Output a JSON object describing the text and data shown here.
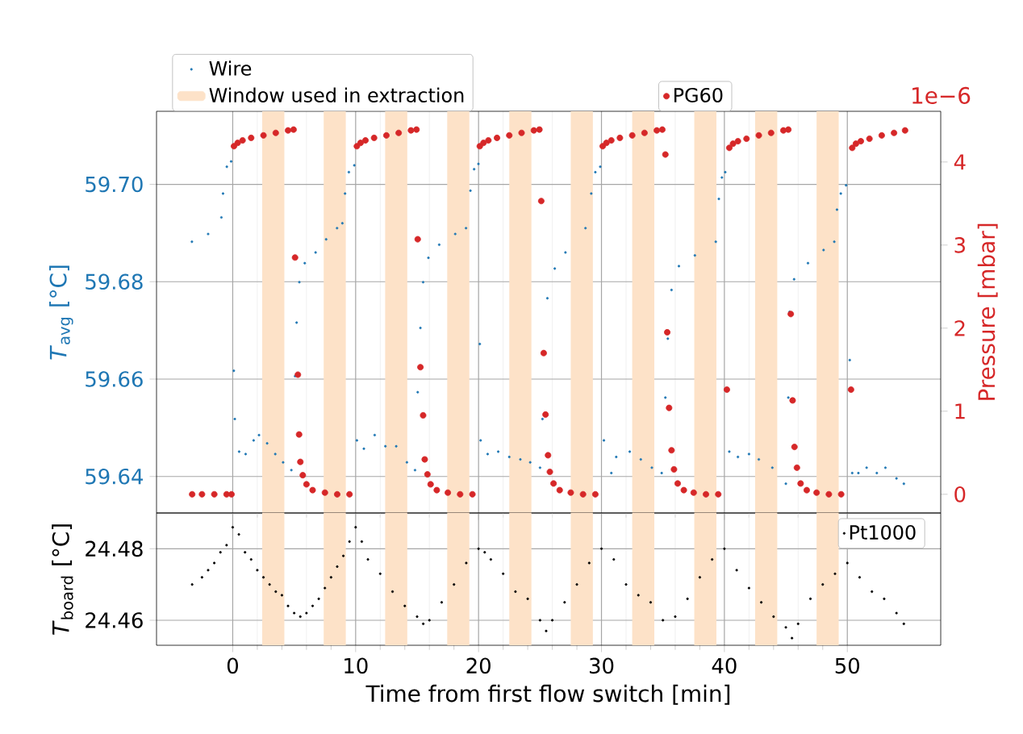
{
  "chart_data": [
    {
      "type": "scatter",
      "ylabel": "*T*$_{avg}$ [°C]",
      "y2label": "Pressure [mbar]",
      "annotations": [
        "1e−6"
      ],
      "xlim": [
        -6.2,
        57.6
      ],
      "xticks": [
        0,
        10,
        20,
        30,
        40,
        50
      ],
      "ylim": [
        59.6325,
        59.715
      ],
      "yticks": [
        {
          "value": 59.64,
          "label": "59.64"
        },
        {
          "value": 59.66,
          "label": "59.66"
        },
        {
          "value": 59.68,
          "label": "59.68"
        },
        {
          "value": 59.7,
          "label": "59.70"
        }
      ],
      "y2lim": [
        -0.225,
        4.61
      ],
      "y2ticks": [
        0,
        1,
        2,
        3,
        4
      ],
      "grid": true,
      "legend": "top",
      "tick_labels": "y",
      "marker": "circle",
      "bands": [
        {
          "axis": "x",
          "from": 2.4,
          "to": 4.2,
          "color": "#fde2c8",
          "label": "Window used in extraction"
        },
        {
          "axis": "x",
          "from": 7.4,
          "to": 9.2,
          "color": "#fde2c8"
        },
        {
          "axis": "x",
          "from": 12.4,
          "to": 14.2,
          "color": "#fde2c8"
        },
        {
          "axis": "x",
          "from": 17.45,
          "to": 19.25,
          "color": "#fde2c8"
        },
        {
          "axis": "x",
          "from": 22.5,
          "to": 24.3,
          "color": "#fde2c8"
        },
        {
          "axis": "x",
          "from": 27.5,
          "to": 29.3,
          "color": "#fde2c8"
        },
        {
          "axis": "x",
          "from": 32.5,
          "to": 34.3,
          "color": "#fde2c8"
        },
        {
          "axis": "x",
          "from": 37.55,
          "to": 39.35,
          "color": "#fde2c8"
        },
        {
          "axis": "x",
          "from": 42.5,
          "to": 44.3,
          "color": "#fde2c8"
        },
        {
          "axis": "x",
          "from": 47.5,
          "to": 49.3,
          "color": "#fde2c8"
        }
      ],
      "series": [
        {
          "name": "Wire",
          "color": "#1f77b4",
          "x": [
            -3.32,
            -2.0,
            -0.92,
            -0.79,
            -0.48,
            -0.13,
            0.09,
            0.17,
            0.52,
            1.05,
            1.7,
            2.14,
            2.8,
            3.46,
            4.1,
            4.77,
            5.07,
            5.2,
            5.42,
            5.86,
            6.74,
            7.6,
            8.49,
            8.92,
            9.14,
            9.45,
            9.89,
            10.1,
            10.67,
            11.55,
            12.42,
            13.3,
            14.17,
            14.83,
            15.05,
            15.27,
            15.49,
            15.92,
            16.8,
            18.1,
            18.98,
            19.34,
            19.64,
            19.99,
            20.1,
            20.17,
            20.74,
            21.6,
            22.5,
            23.4,
            24.2,
            25.0,
            25.2,
            25.4,
            25.6,
            26.2,
            27.07,
            28.7,
            29.17,
            29.5,
            29.9,
            30.2,
            30.8,
            31.2,
            32.3,
            33.2,
            34.1,
            34.9,
            35.2,
            35.4,
            35.7,
            36.3,
            37.6,
            39.3,
            39.55,
            39.8,
            40.07,
            40.4,
            41.1,
            42.0,
            42.8,
            43.9,
            45.0,
            45.2,
            45.3,
            45.67,
            46.8,
            48.07,
            48.94,
            49.16,
            49.47,
            49.9,
            50.2,
            50.4,
            50.9,
            51.57,
            52.4,
            53.1,
            54.0,
            54.6
          ],
          "values": [
            59.6882,
            59.6898,
            59.6932,
            59.6981,
            59.7036,
            59.7047,
            59.6617,
            59.6518,
            59.6451,
            59.6446,
            59.6474,
            59.6485,
            59.6468,
            59.6446,
            59.6429,
            59.6413,
            59.6606,
            59.6716,
            59.6799,
            59.6838,
            59.686,
            59.6887,
            59.691,
            59.692,
            59.6981,
            59.7025,
            59.7039,
            59.6474,
            59.6457,
            59.6485,
            59.6462,
            59.6462,
            59.6429,
            59.6413,
            59.6573,
            59.6705,
            59.6799,
            59.6849,
            59.6876,
            59.6898,
            59.691,
            59.6987,
            59.7031,
            59.7042,
            59.6672,
            59.6474,
            59.6446,
            59.6451,
            59.644,
            59.6435,
            59.6429,
            59.6418,
            59.6518,
            null,
            59.6766,
            59.6827,
            59.686,
            59.691,
            59.6981,
            59.7025,
            59.7036,
            59.6474,
            59.6407,
            59.644,
            59.6451,
            59.6435,
            59.6418,
            59.6407,
            59.6562,
            59.6683,
            59.6783,
            59.6832,
            59.6854,
            59.6882,
            59.697,
            59.7014,
            59.7025,
            59.6451,
            59.644,
            59.6446,
            59.6435,
            59.6418,
            59.6385,
            59.6562,
            59.6738,
            59.6805,
            59.6838,
            59.6865,
            59.6882,
            59.6948,
            59.6981,
            59.6998,
            59.6639,
            59.6407,
            59.6407,
            59.6418,
            59.6407,
            59.6418,
            59.6396,
            59.6385
          ]
        },
        {
          "name": "PG60",
          "color": "#d62728",
          "axis": "y2",
          "x": [
            -3.3,
            -2.5,
            -1.5,
            -0.5,
            -0.1,
            0.1,
            0.4,
            0.8,
            1.5,
            2.5,
            3.5,
            4.5,
            4.95,
            5.07,
            5.3,
            5.4,
            5.5,
            5.7,
            6.0,
            6.5,
            7.5,
            8.5,
            9.5,
            10.1,
            10.4,
            10.8,
            11.5,
            12.5,
            13.5,
            14.5,
            14.95,
            15.05,
            15.27,
            15.49,
            15.62,
            15.84,
            16.1,
            16.6,
            17.5,
            18.5,
            19.5,
            20.1,
            20.4,
            20.8,
            21.5,
            22.5,
            23.5,
            24.5,
            24.95,
            25.1,
            25.3,
            25.45,
            25.65,
            25.8,
            26.1,
            26.6,
            27.5,
            28.5,
            29.5,
            30.1,
            30.4,
            30.8,
            31.5,
            32.5,
            33.5,
            34.5,
            34.95,
            35.2,
            35.35,
            35.5,
            35.7,
            35.9,
            36.2,
            36.7,
            37.5,
            38.5,
            39.5,
            40.2,
            40.4,
            40.7,
            41.1,
            41.8,
            42.8,
            43.8,
            44.8,
            45.2,
            45.4,
            45.55,
            45.7,
            45.9,
            46.2,
            46.7,
            47.5,
            48.5,
            49.5,
            50.3,
            50.4,
            50.7,
            51.1,
            51.8,
            52.8,
            53.8,
            54.7
          ],
          "values": [
            0,
            0,
            0,
            0,
            0,
            4.19,
            4.23,
            4.26,
            4.29,
            4.32,
            4.35,
            4.38,
            4.39,
            2.85,
            1.44,
            0.72,
            0.39,
            0.23,
            0.12,
            0.05,
            0.02,
            0,
            0,
            4.19,
            4.23,
            4.26,
            4.29,
            4.32,
            4.35,
            4.38,
            4.39,
            3.07,
            1.53,
            0.95,
            0.42,
            0.24,
            0.12,
            0.05,
            0.02,
            0,
            0,
            4.19,
            4.23,
            4.26,
            4.29,
            4.32,
            4.35,
            4.38,
            4.39,
            3.53,
            1.7,
            0.96,
            0.47,
            0.27,
            0.13,
            0.05,
            0.02,
            0,
            0,
            4.19,
            4.23,
            4.26,
            4.29,
            4.32,
            4.35,
            4.38,
            4.39,
            4.09,
            1.95,
            1.04,
            0.53,
            0.3,
            0.13,
            0.05,
            0.02,
            0,
            0,
            1.26,
            4.17,
            4.22,
            4.25,
            4.28,
            4.32,
            4.35,
            4.38,
            4.39,
            2.17,
            1.13,
            0.57,
            0.32,
            0.13,
            0.05,
            0.02,
            0,
            0,
            1.26,
            4.17,
            4.22,
            4.25,
            4.28,
            4.32,
            4.35,
            4.38
          ]
        }
      ]
    },
    {
      "type": "scatter",
      "xlabel": "Time from first flow switch [min]",
      "ylabel": "*T*$_{board}$ [°C]",
      "xlim": [
        -6.2,
        57.6
      ],
      "xticks": [
        0,
        10,
        20,
        30,
        40,
        50
      ],
      "ylim": [
        24.453,
        24.49
      ],
      "yticks": [
        24.46,
        24.48
      ],
      "grid": true,
      "legend": "top right",
      "marker": "circle",
      "bands": [
        {
          "axis": "x",
          "from": 2.4,
          "to": 4.2,
          "color": "#fde2c8"
        },
        {
          "axis": "x",
          "from": 7.4,
          "to": 9.2,
          "color": "#fde2c8"
        },
        {
          "axis": "x",
          "from": 12.4,
          "to": 14.2,
          "color": "#fde2c8"
        },
        {
          "axis": "x",
          "from": 17.45,
          "to": 19.25,
          "color": "#fde2c8"
        },
        {
          "axis": "x",
          "from": 22.5,
          "to": 24.3,
          "color": "#fde2c8"
        },
        {
          "axis": "x",
          "from": 27.5,
          "to": 29.3,
          "color": "#fde2c8"
        },
        {
          "axis": "x",
          "from": 32.5,
          "to": 34.3,
          "color": "#fde2c8"
        },
        {
          "axis": "x",
          "from": 37.55,
          "to": 39.35,
          "color": "#fde2c8"
        },
        {
          "axis": "x",
          "from": 42.5,
          "to": 44.3,
          "color": "#fde2c8"
        },
        {
          "axis": "x",
          "from": 47.5,
          "to": 49.3,
          "color": "#fde2c8"
        }
      ],
      "series": [
        {
          "name": "Pt1000",
          "color": "#000000",
          "x": [
            -3.3,
            -2.5,
            -2,
            -1.5,
            -1,
            -0.5,
            0,
            0.5,
            1,
            1.5,
            2,
            2.5,
            3,
            3.5,
            4,
            4.5,
            5,
            5.5,
            6,
            6.5,
            7,
            7.5,
            8,
            8.5,
            9,
            9.5,
            10,
            10.5,
            11,
            12,
            13,
            14,
            15,
            15.5,
            16,
            17,
            18,
            19,
            20,
            20.5,
            21,
            22,
            23,
            24,
            25,
            25.5,
            26,
            27,
            28,
            29,
            30,
            31,
            32,
            33,
            34,
            35,
            36,
            37,
            38,
            39,
            40,
            41,
            42,
            43,
            44,
            45,
            45.5,
            46,
            47,
            48,
            49,
            50,
            51,
            52,
            53,
            54,
            54.6
          ],
          "values": [
            24.47,
            24.472,
            24.474,
            24.476,
            24.479,
            24.481,
            24.486,
            24.484,
            24.479,
            24.477,
            24.474,
            24.472,
            24.47,
            24.468,
            24.467,
            24.464,
            24.462,
            24.461,
            24.462,
            24.464,
            24.466,
            24.469,
            24.472,
            24.475,
            24.478,
            24.482,
            24.486,
            24.482,
            24.477,
            24.473,
            24.468,
            24.464,
            24.461,
            24.459,
            24.46,
            24.465,
            24.47,
            24.476,
            24.48,
            24.479,
            24.477,
            24.473,
            24.468,
            24.466,
            24.46,
            24.457,
            24.46,
            24.465,
            24.47,
            24.476,
            24.48,
            24.477,
            24.47,
            24.467,
            24.465,
            24.46,
            24.461,
            24.466,
            24.472,
            24.477,
            24.48,
            24.474,
            24.469,
            24.465,
            24.461,
            24.458,
            24.455,
            24.459,
            24.466,
            24.47,
            24.473,
            24.476,
            24.472,
            24.468,
            24.466,
            24.462,
            24.459
          ]
        }
      ]
    }
  ]
}
